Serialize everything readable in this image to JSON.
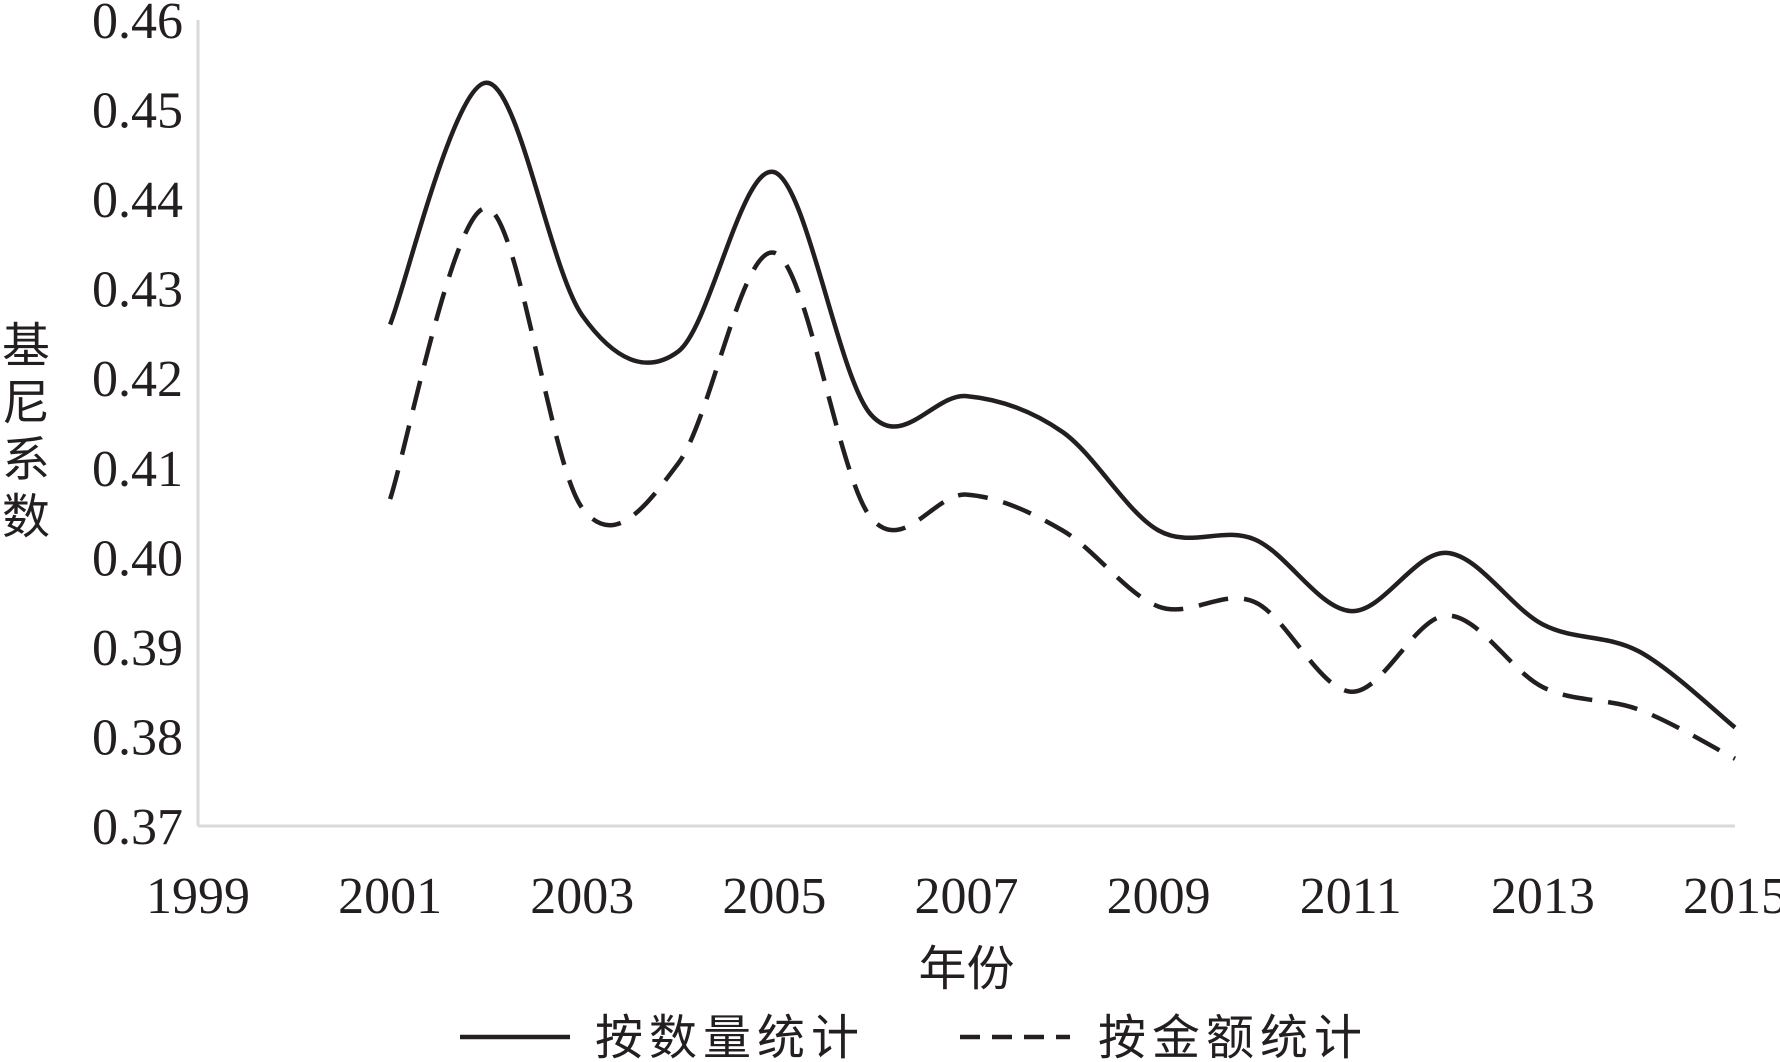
{
  "chart_data": {
    "type": "line",
    "x": [
      2001,
      2002,
      2003,
      2004,
      2005,
      2006,
      2007,
      2008,
      2009,
      2010,
      2011,
      2012,
      2013,
      2014,
      2015
    ],
    "xticks": [
      "1999",
      "2001",
      "2003",
      "2005",
      "2007",
      "2009",
      "2011",
      "2013",
      "2015"
    ],
    "yticks": [
      "0.37",
      "0.38",
      "0.39",
      "0.40",
      "0.41",
      "0.42",
      "0.43",
      "0.44",
      "0.45",
      "0.46"
    ],
    "xlim": [
      1999,
      2015
    ],
    "ylim": [
      0.37,
      0.46
    ],
    "xlabel": "年份",
    "ylabel": "基尼系数",
    "series": [
      {
        "name": "按数量统计",
        "style": "solid",
        "color": "#231f20",
        "values": [
          0.426,
          0.453,
          0.427,
          0.423,
          0.443,
          0.416,
          0.418,
          0.414,
          0.403,
          0.402,
          0.394,
          0.4005,
          0.3925,
          0.3895,
          0.381
        ]
      },
      {
        "name": "按金额统计",
        "style": "dashed",
        "color": "#231f20",
        "values": [
          0.4065,
          0.439,
          0.4055,
          0.4105,
          0.434,
          0.4045,
          0.407,
          0.403,
          0.3945,
          0.395,
          0.385,
          0.3935,
          0.3855,
          0.383,
          0.3775
        ]
      }
    ],
    "grid": false,
    "legend_position": "bottom"
  }
}
